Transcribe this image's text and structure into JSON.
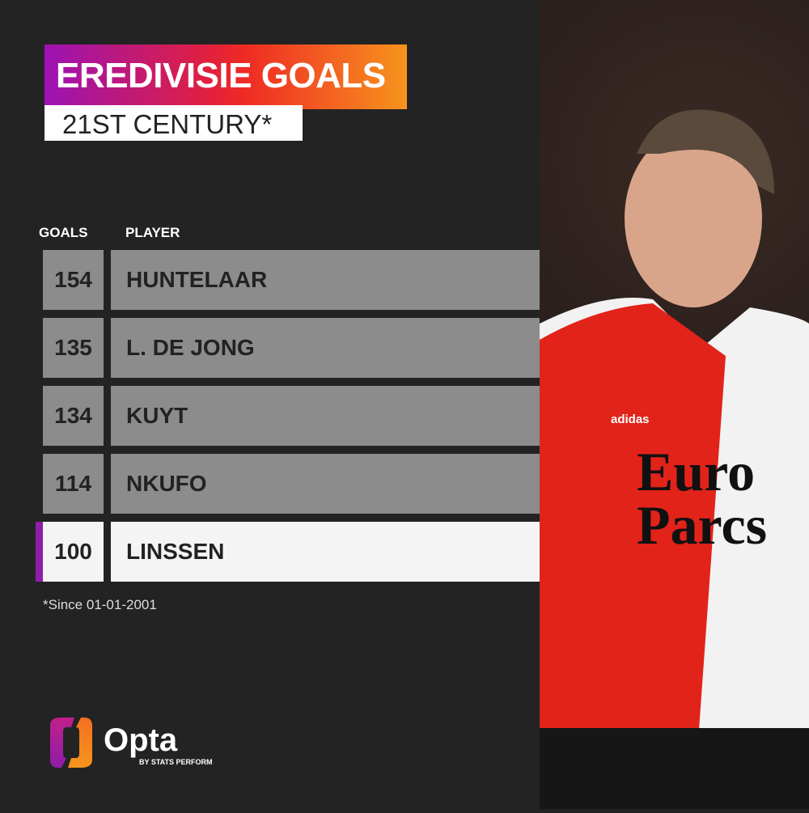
{
  "title": "EREDIVISIE GOALS",
  "subtitle": "21ST CENTURY*",
  "headers": {
    "goals": "GOALS",
    "player": "PLAYER"
  },
  "rows": [
    {
      "goals": "154",
      "player": "HUNTELAAR"
    },
    {
      "goals": "135",
      "player": "L. DE JONG"
    },
    {
      "goals": "134",
      "player": "KUYT"
    },
    {
      "goals": "114",
      "player": "NKUFO"
    },
    {
      "goals": "100",
      "player": "LINSSEN",
      "highlighted": true
    }
  ],
  "footnote": "*Since 01-01-2001",
  "logo": {
    "name": "Opta",
    "tagline": "BY STATS PERFORM"
  },
  "shirt": {
    "sponsor_line1": "Euro",
    "sponsor_line2": "Parcs",
    "brand": "adidas"
  },
  "colors": {
    "background": "#232323",
    "row": "#8c8c8c",
    "highlight_row": "#f4f4f4",
    "highlight_bar": "#8e1ea8",
    "gradient_start": "#9c12b4",
    "gradient_end": "#f7941d"
  }
}
